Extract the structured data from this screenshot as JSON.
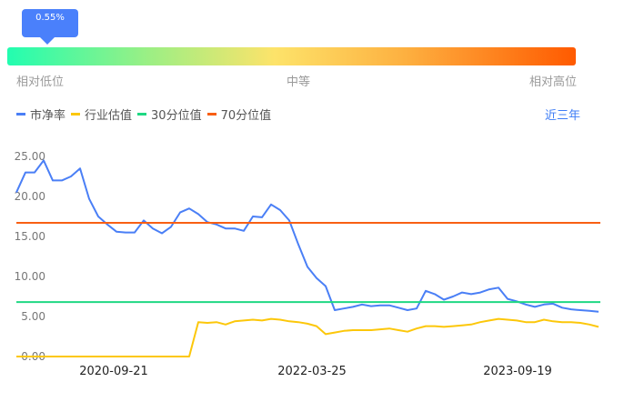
{
  "percentile_marker": {
    "label": "0.55%",
    "value_pct": 0.55
  },
  "scale_labels": {
    "low": "相对低位",
    "mid": "中等",
    "high": "相对高位"
  },
  "legend": [
    {
      "label": "市净率",
      "color": "#4a7ff6"
    },
    {
      "label": "行业估值",
      "color": "#fcc70a"
    },
    {
      "label": "30分位值",
      "color": "#1fd883"
    },
    {
      "label": "70分位值",
      "color": "#f85f13"
    }
  ],
  "period_button": "近三年",
  "chart_data": {
    "type": "line",
    "x_ticks": [
      "2020-09-21",
      "2022-03-25",
      "2023-09-19"
    ],
    "y_ticks": [
      "0.00",
      "5.00",
      "10.00",
      "15.00",
      "20.00",
      "25.00"
    ],
    "ylim": [
      0,
      25
    ],
    "series": [
      {
        "name": "市净率",
        "color": "#4a7ff6",
        "values": [
          20.5,
          23,
          23,
          24.5,
          22,
          22,
          22.5,
          23.5,
          19.7,
          17.5,
          16.5,
          15.6,
          15.5,
          15.5,
          17,
          16,
          15.4,
          16.2,
          18,
          18.5,
          17.8,
          16.8,
          16.5,
          16,
          16,
          15.7,
          17.5,
          17.4,
          19,
          18.3,
          17,
          14,
          11.2,
          9.8,
          8.8,
          5.8,
          6,
          6.2,
          6.5,
          6.3,
          6.4,
          6.4,
          6.1,
          5.8,
          6,
          8.2,
          7.8,
          7.1,
          7.5,
          8,
          7.8,
          8,
          8.4,
          8.6,
          7.2,
          6.9,
          6.5,
          6.2,
          6.5,
          6.6,
          6.1,
          5.9,
          5.8,
          5.7,
          5.6
        ]
      },
      {
        "name": "行业估值",
        "color": "#fcc70a",
        "values": [
          0,
          0,
          0,
          0,
          0,
          0,
          0,
          0,
          0,
          0,
          0,
          0,
          0,
          0,
          0,
          0,
          0,
          0,
          0,
          0,
          4.3,
          4.2,
          4.3,
          4,
          4.4,
          4.5,
          4.6,
          4.5,
          4.7,
          4.6,
          4.4,
          4.3,
          4.1,
          3.8,
          2.8,
          3,
          3.2,
          3.3,
          3.3,
          3.3,
          3.4,
          3.5,
          3.3,
          3.1,
          3.5,
          3.8,
          3.8,
          3.7,
          3.8,
          3.9,
          4,
          4.3,
          4.5,
          4.7,
          4.6,
          4.5,
          4.3,
          4.3,
          4.6,
          4.4,
          4.3,
          4.3,
          4.2,
          4,
          3.7
        ]
      },
      {
        "name": "30分位值",
        "color": "#1fd883",
        "constant": 6.8
      },
      {
        "name": "70分位值",
        "color": "#f85f13",
        "constant": 16.7
      }
    ]
  }
}
